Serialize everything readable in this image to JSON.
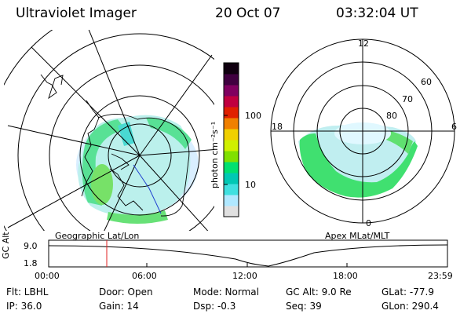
{
  "header": {
    "instrument": "Ultraviolet Imager",
    "date": "20 Oct 07",
    "time": "03:32:04 UT"
  },
  "geo_panel": {
    "caption": "Geographic Lat/Lon"
  },
  "mag_panel": {
    "caption": "Apex MLat/MLT",
    "mlt_labels": [
      "12",
      "18",
      "6",
      "0"
    ],
    "mlat_labels": [
      "60",
      "70",
      "80"
    ]
  },
  "colorbar": {
    "unit_label": "photon cm⁻²s⁻¹",
    "ticks": [
      "100",
      "10"
    ],
    "scale": "log",
    "colors": [
      "#e0e0e0",
      "#b0e8ff",
      "#40e0e0",
      "#00c8b4",
      "#00e070",
      "#80e000",
      "#d0f000",
      "#f0d000",
      "#f08000",
      "#e02000",
      "#c00040",
      "#800060",
      "#400040",
      "#100010"
    ]
  },
  "altitude_plot": {
    "ylabel": "GC Alt",
    "yticks": [
      "9.0",
      "1.8"
    ],
    "xticks": [
      "00:00",
      "06:00",
      "12:00",
      "18:00",
      "23:59"
    ],
    "current_marker_time": "03:32"
  },
  "status": {
    "filter": "Flt: LBHL",
    "ip": "IP: 36.0",
    "door": "Door: Open",
    "gain": "Gain: 14",
    "mode": "Mode: Normal",
    "dsp": "Dsp:    -0.3",
    "gc_alt": "GC Alt: 9.0 Re",
    "seq": "Seq: 39",
    "glat": "GLat:  -77.9",
    "glon": "GLon: 290.4"
  }
}
